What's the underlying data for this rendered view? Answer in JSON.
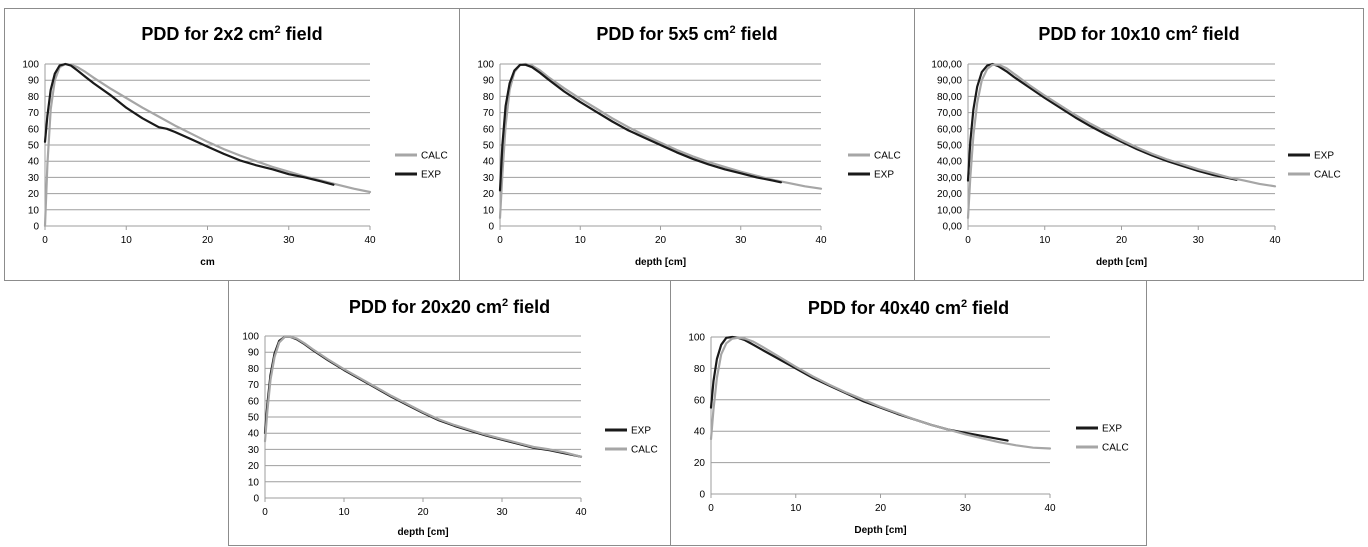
{
  "chart_data": [
    {
      "type": "line",
      "title": "PDD for 2x2 cm",
      "title_sup": "2",
      "title_end": " field",
      "xlabel": "cm",
      "ylabel": "",
      "xlim": [
        0,
        40
      ],
      "ylim": [
        0,
        100
      ],
      "x_ticks": [
        "0",
        "10",
        "20",
        "30",
        "40"
      ],
      "y_ticks": [
        "0",
        "10",
        "20",
        "30",
        "40",
        "50",
        "60",
        "70",
        "80",
        "90",
        "100"
      ],
      "grid": true,
      "legend_placement": "right",
      "series": [
        {
          "name": "CALC",
          "color": "#a6a6a6",
          "x": [
            0,
            0.3,
            0.7,
            1.2,
            1.8,
            2.5,
            3.2,
            4,
            5,
            6,
            8,
            10,
            12,
            14,
            16,
            18,
            20,
            22,
            24,
            26,
            28,
            30,
            32,
            34,
            36,
            38,
            40
          ],
          "y": [
            0,
            38,
            72,
            90,
            98,
            100,
            99.5,
            98,
            95,
            91.5,
            85,
            79,
            73,
            67.5,
            62,
            57,
            52,
            47.5,
            43.5,
            40,
            36.5,
            33.5,
            30.5,
            28,
            25.5,
            23,
            21
          ]
        },
        {
          "name": "EXP",
          "color": "#1a1a1a",
          "x": [
            0,
            0.3,
            0.7,
            1.2,
            1.8,
            2.5,
            3.2,
            4,
            5,
            6,
            8,
            10,
            12,
            14,
            15,
            16,
            18,
            20,
            22,
            24,
            26,
            28,
            30,
            32,
            34,
            35.5
          ],
          "y": [
            52,
            68,
            84,
            94,
            99,
            100,
            99,
            96,
            92,
            88,
            81,
            73,
            66.5,
            61,
            60,
            58,
            53.5,
            49,
            44.5,
            40.5,
            37.5,
            35,
            32,
            30,
            27.5,
            25.5
          ]
        }
      ]
    },
    {
      "type": "line",
      "title": "PDD for 5x5 cm",
      "title_sup": "2",
      "title_end": " field",
      "xlabel": "depth [cm]",
      "ylabel": "",
      "xlim": [
        0,
        40
      ],
      "ylim": [
        0,
        100
      ],
      "x_ticks": [
        "0",
        "10",
        "20",
        "30",
        "40"
      ],
      "y_ticks": [
        "0",
        "10",
        "20",
        "30",
        "40",
        "50",
        "60",
        "70",
        "80",
        "90",
        "100"
      ],
      "grid": true,
      "legend_placement": "right",
      "series": [
        {
          "name": "CALC",
          "color": "#a6a6a6",
          "x": [
            0,
            0.3,
            0.7,
            1.2,
            1.8,
            2.5,
            3.2,
            4,
            5,
            6,
            8,
            10,
            12,
            14,
            16,
            18,
            20,
            22,
            24,
            26,
            28,
            30,
            32,
            34,
            36,
            38,
            40
          ],
          "y": [
            5,
            32,
            62,
            84,
            95,
            99.5,
            100,
            99,
            96,
            92,
            85,
            78.5,
            72.5,
            66.5,
            61,
            56,
            51.5,
            47,
            43,
            39.5,
            36.5,
            33.5,
            31,
            28.5,
            26.5,
            24.5,
            23
          ]
        },
        {
          "name": "EXP",
          "color": "#1a1a1a",
          "x": [
            0,
            0.3,
            0.7,
            1.2,
            1.8,
            2.5,
            3.2,
            4,
            5,
            6,
            8,
            10,
            12,
            14,
            16,
            18,
            20,
            22,
            24,
            26,
            28,
            30,
            32,
            34,
            35
          ],
          "y": [
            22,
            50,
            74,
            88,
            96,
            99.5,
            99.5,
            98,
            94.5,
            90.5,
            83,
            76.5,
            70.5,
            64.5,
            59,
            54.5,
            50,
            45.5,
            41.5,
            38,
            35,
            32.5,
            30,
            28,
            27
          ]
        }
      ]
    },
    {
      "type": "line",
      "title": "PDD for 10x10 cm",
      "title_sup": "2",
      "title_end": " field",
      "xlabel": "depth [cm]",
      "ylabel": "",
      "xlim": [
        0,
        40
      ],
      "ylim": [
        0,
        100
      ],
      "x_ticks": [
        "0",
        "10",
        "20",
        "30",
        "40"
      ],
      "y_ticks": [
        "0,00",
        "10,00",
        "20,00",
        "30,00",
        "40,00",
        "50,00",
        "60,00",
        "70,00",
        "80,00",
        "90,00",
        "100,00"
      ],
      "grid": true,
      "legend_placement": "right",
      "series": [
        {
          "name": "EXP",
          "color": "#1a1a1a",
          "x": [
            0,
            0.3,
            0.7,
            1.2,
            1.8,
            2.5,
            3.2,
            4,
            5,
            6,
            8,
            10,
            12,
            14,
            16,
            18,
            20,
            22,
            24,
            26,
            28,
            30,
            32,
            34,
            35
          ],
          "y": [
            28,
            52,
            72,
            86,
            95,
            99,
            100,
            98.5,
            95.5,
            92,
            85.5,
            79,
            73,
            67,
            61.5,
            56.5,
            52,
            47.5,
            43.5,
            40,
            37,
            34,
            31.5,
            29.5,
            28.5
          ]
        },
        {
          "name": "CALC",
          "color": "#a6a6a6",
          "x": [
            0,
            0.3,
            0.7,
            1.2,
            1.8,
            2.5,
            3.2,
            4,
            5,
            6,
            8,
            10,
            12,
            14,
            16,
            18,
            20,
            22,
            24,
            26,
            28,
            30,
            32,
            34,
            36,
            38,
            40
          ],
          "y": [
            5,
            30,
            56,
            76,
            90,
            97,
            99.5,
            99.5,
            97.5,
            94,
            87,
            80.5,
            74.5,
            68.5,
            63,
            58,
            53,
            48.5,
            44.5,
            41,
            38,
            35,
            32.5,
            30,
            28,
            26,
            24.5
          ]
        }
      ]
    },
    {
      "type": "line",
      "title": "PDD for 20x20 cm",
      "title_sup": "2",
      "title_end": " field",
      "xlabel": "depth [cm]",
      "ylabel": "",
      "xlim": [
        0,
        40
      ],
      "ylim": [
        0,
        100
      ],
      "x_ticks": [
        "0",
        "10",
        "20",
        "30",
        "40"
      ],
      "y_ticks": [
        "0",
        "10",
        "20",
        "30",
        "40",
        "50",
        "60",
        "70",
        "80",
        "90",
        "100"
      ],
      "grid": true,
      "legend_placement": "right",
      "series": [
        {
          "name": "EXP",
          "color": "#1a1a1a",
          "x": [
            0,
            0.3,
            0.7,
            1.2,
            1.8,
            2.5,
            3.2,
            4,
            5,
            6,
            8,
            10,
            12,
            14,
            16,
            18,
            20,
            22,
            24,
            26,
            28,
            30,
            32,
            34,
            36,
            38,
            40
          ],
          "y": [
            40,
            58,
            76,
            89,
            97,
            99.5,
            99.5,
            98,
            95,
            91.5,
            85,
            79,
            73.5,
            68,
            62.5,
            57.5,
            52.5,
            48,
            44.5,
            41.5,
            38.5,
            36,
            33.5,
            31,
            29.5,
            27.5,
            25.5
          ]
        },
        {
          "name": "CALC",
          "color": "#a6a6a6",
          "x": [
            0,
            0.3,
            0.7,
            1.2,
            1.8,
            2.5,
            3.2,
            4,
            5,
            6,
            8,
            10,
            12,
            14,
            16,
            18,
            20,
            22,
            24,
            26,
            28,
            30,
            32,
            34,
            36,
            38,
            40
          ],
          "y": [
            35,
            54,
            73,
            87,
            96,
            99.5,
            99.5,
            98.5,
            95.5,
            92,
            85.5,
            79.5,
            74,
            68.5,
            63,
            58,
            53,
            48.5,
            45,
            42,
            39,
            36.5,
            34,
            31.5,
            30,
            28,
            25.5
          ]
        }
      ]
    },
    {
      "type": "line",
      "title": "PDD for 40x40 cm",
      "title_sup": "2",
      "title_end": " field",
      "xlabel": "Depth [cm]",
      "ylabel": "",
      "xlim": [
        0,
        40
      ],
      "ylim": [
        0,
        100
      ],
      "x_ticks": [
        "0",
        "10",
        "20",
        "30",
        "40"
      ],
      "y_ticks": [
        "0",
        "20",
        "40",
        "60",
        "80",
        "100"
      ],
      "grid": true,
      "legend_placement": "right",
      "series": [
        {
          "name": "EXP",
          "color": "#1a1a1a",
          "x": [
            0,
            0.3,
            0.7,
            1.2,
            1.8,
            2.5,
            3.2,
            4,
            5,
            6,
            8,
            10,
            12,
            14,
            16,
            18,
            20,
            22,
            24,
            26,
            28,
            30,
            32,
            34,
            35
          ],
          "y": [
            55,
            72,
            86,
            95,
            99.5,
            100,
            99.5,
            98,
            95,
            92,
            86,
            80,
            74,
            69,
            64,
            59,
            55,
            51,
            47.5,
            44,
            41,
            39,
            37,
            35,
            34
          ]
        },
        {
          "name": "CALC",
          "color": "#a6a6a6",
          "x": [
            0,
            0.3,
            0.7,
            1.2,
            1.8,
            2.5,
            3.2,
            4,
            5,
            6,
            8,
            10,
            12,
            14,
            16,
            18,
            20,
            22,
            24,
            26,
            28,
            30,
            32,
            34,
            36,
            38,
            40
          ],
          "y": [
            35,
            54,
            74,
            89,
            96,
            99,
            99.5,
            99,
            97,
            94,
            87.5,
            81,
            75,
            69.5,
            64.5,
            60,
            55.5,
            51.5,
            47.5,
            44,
            41,
            38,
            35.5,
            33,
            31,
            29.5,
            29
          ]
        }
      ]
    }
  ]
}
